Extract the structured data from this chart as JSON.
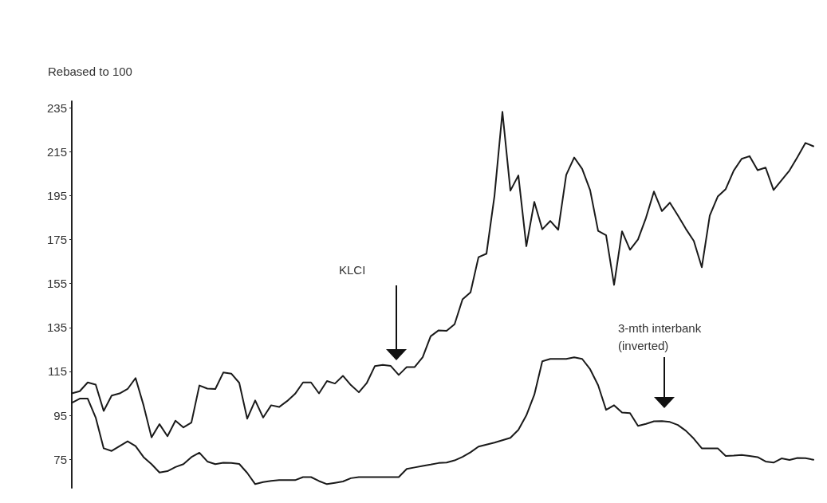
{
  "chart_data": {
    "type": "line",
    "ylabel": "Rebased to 100",
    "categories": [
      null,
      null,
      null,
      null,
      null,
      null,
      null,
      null,
      null,
      null,
      null,
      null,
      null,
      null,
      null,
      null,
      null,
      null,
      null,
      null,
      null,
      null,
      null,
      null,
      null,
      null,
      null,
      null,
      null,
      null,
      null,
      null,
      null,
      null,
      null,
      null,
      null,
      null,
      null,
      null,
      null,
      null,
      null,
      null,
      null,
      null,
      null,
      null,
      null,
      null,
      null,
      null,
      null,
      null,
      null,
      null,
      null,
      null,
      null,
      null,
      null,
      null,
      null,
      null,
      null,
      null,
      null,
      null,
      null,
      null,
      null,
      null,
      null,
      null,
      null,
      null,
      null,
      null,
      null,
      null,
      null,
      null,
      null,
      null,
      null,
      null,
      null,
      null,
      null,
      null,
      null,
      null,
      null,
      null
    ],
    "series": [
      {
        "color": "#1a1a1a",
        "values": [
          105,
          106,
          110,
          109,
          97,
          104,
          105,
          107,
          112,
          99.6,
          85,
          91,
          85.5,
          92.6,
          89.5,
          91.7,
          108.6,
          107.2,
          107,
          114.5,
          114,
          109.8,
          93.5,
          101.8,
          94,
          99.6,
          98.8,
          101.5,
          104.8,
          110,
          110,
          105,
          110.6,
          109.5,
          113,
          108.8,
          105.5,
          109.8,
          117.4,
          118,
          117.5,
          113.4,
          117,
          117,
          121.5,
          131,
          133.7,
          133.5,
          136.5,
          147.8,
          151,
          167,
          168.6,
          194.8,
          233.2,
          197.3,
          204.2,
          172,
          192.2,
          179.7,
          183.5,
          179.5,
          204.5,
          212.4,
          207.2,
          197.5,
          179,
          177,
          154.4,
          178.8,
          170.4,
          175.1,
          184.9,
          196.9,
          188,
          191.8,
          186,
          179.9,
          174.4,
          162.4,
          186,
          194.6,
          198,
          206.4,
          211.8,
          213,
          206.6,
          207.8,
          197.6,
          202,
          206.5,
          212.6,
          219,
          217.5
        ]
      },
      {
        "color": "#1a1a1a",
        "values": [
          100.7,
          102.6,
          102.6,
          94,
          80,
          78.8,
          81,
          83.2,
          81,
          76,
          72.8,
          69,
          69.6,
          71.5,
          72.8,
          76,
          78,
          74,
          72.8,
          73.4,
          73.3,
          72.9,
          68.8,
          63.7,
          64.6,
          65.2,
          65.5,
          65.5,
          65.5,
          66.9,
          66.9,
          65.1,
          63.7,
          64.3,
          64.9,
          66.4,
          66.9,
          66.9,
          66.9,
          66.9,
          66.9,
          66.9,
          70.6,
          71.3,
          72,
          72.6,
          73.3,
          73.5,
          74.5,
          76.1,
          78.2,
          80.8,
          81.7,
          82.6,
          83.7,
          84.8,
          88.4,
          95,
          104.4,
          119.6,
          120.7,
          120.7,
          120.7,
          121.4,
          120.7,
          116,
          108.7,
          97.5,
          99.6,
          96.3,
          96,
          90.2,
          91.1,
          92.3,
          92.4,
          92,
          90.6,
          88,
          84.4,
          80,
          80,
          80,
          76.5,
          76.7,
          77,
          76.5,
          76,
          74,
          73.5,
          75.4,
          74.7,
          75.6,
          75.5,
          74.8
        ]
      }
    ],
    "ylim": [
      62,
      238
    ],
    "yticks": [
      75,
      95,
      115,
      135,
      155,
      175,
      195,
      215,
      235
    ],
    "annotations": [
      "KLCI",
      "3-mth interbank (inverted)"
    ],
    "grid": false,
    "marker": "none",
    "line_style": "solid"
  }
}
